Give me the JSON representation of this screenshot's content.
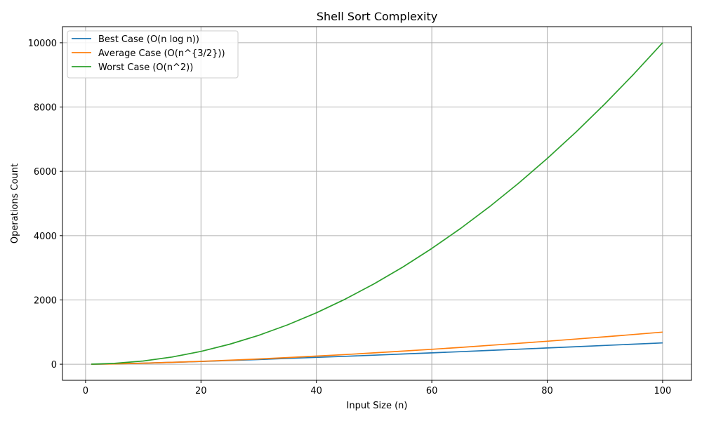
{
  "chart_data": {
    "type": "line",
    "title": "Shell Sort Complexity",
    "xlabel": "Input Size (n)",
    "ylabel": "Operations Count",
    "xlim": [
      -4,
      105
    ],
    "ylim": [
      -500,
      10500
    ],
    "xticks": [
      0,
      20,
      40,
      60,
      80,
      100
    ],
    "yticks": [
      0,
      2000,
      4000,
      6000,
      8000,
      10000
    ],
    "xtick_labels": [
      "0",
      "20",
      "40",
      "60",
      "80",
      "100"
    ],
    "ytick_labels": [
      "0",
      "2000",
      "4000",
      "6000",
      "8000",
      "10000"
    ],
    "grid": true,
    "legend_position": "top-left",
    "x": [
      1,
      5,
      10,
      15,
      20,
      25,
      30,
      35,
      40,
      45,
      50,
      55,
      60,
      65,
      70,
      75,
      80,
      85,
      90,
      95,
      100
    ],
    "series": [
      {
        "name": "Best Case (O(n log n))",
        "color": "#1f77b4",
        "values": [
          0,
          12,
          33,
          59,
          86,
          116,
          147,
          180,
          213,
          247,
          282,
          318,
          354,
          391,
          429,
          467,
          506,
          545,
          584,
          624,
          664
        ]
      },
      {
        "name": "Average Case (O(n^{3/2}))",
        "color": "#ff7f0e",
        "values": [
          1,
          11,
          32,
          58,
          89,
          125,
          164,
          207,
          253,
          302,
          354,
          408,
          465,
          524,
          586,
          650,
          716,
          784,
          854,
          926,
          1000
        ]
      },
      {
        "name": "Worst Case (O(n^2))",
        "color": "#2ca02c",
        "values": [
          1,
          25,
          100,
          225,
          400,
          625,
          900,
          1225,
          1600,
          2025,
          2500,
          3025,
          3600,
          4225,
          4900,
          5625,
          6400,
          7225,
          8100,
          9025,
          10000
        ]
      }
    ]
  }
}
